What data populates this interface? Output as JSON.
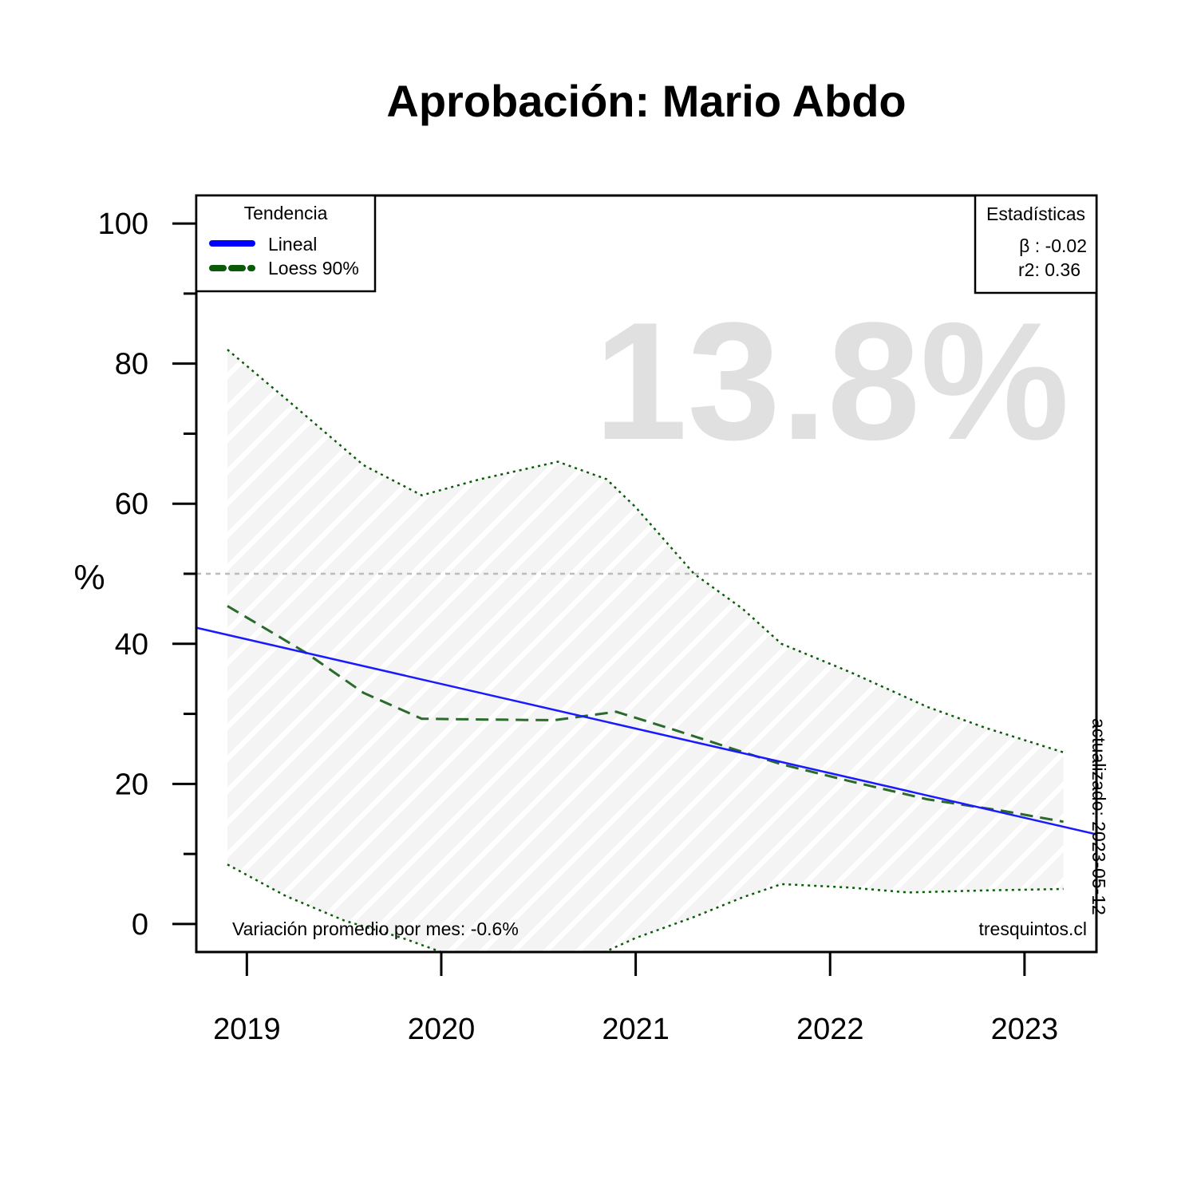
{
  "chart_data": {
    "type": "line",
    "title": "Aprobación: Mario Abdo",
    "ylabel": "%",
    "xlabel": "",
    "ylim": [
      -4,
      104
    ],
    "xlim": [
      2018.74,
      2023.37
    ],
    "y_ticks": [
      0,
      20,
      40,
      60,
      80,
      100
    ],
    "y_minor_ticks": [
      10,
      30,
      50,
      70,
      90
    ],
    "x_ticks": [
      {
        "value": 2019,
        "label": "2019"
      },
      {
        "value": 2020,
        "label": "2020"
      },
      {
        "value": 2021,
        "label": "2021"
      },
      {
        "value": 2022,
        "label": "2022"
      },
      {
        "value": 2023,
        "label": "2023"
      }
    ],
    "reference_line": 50,
    "series": [
      {
        "name": "Lineal",
        "color": "#0000ff",
        "style": "solid",
        "x": [
          2018.74,
          2023.37
        ],
        "y": [
          42.3,
          12.8
        ]
      },
      {
        "name": "Loess 90%",
        "color": "#0a5a0a",
        "style": "dashed",
        "x": [
          2018.9,
          2019.3,
          2019.6,
          2019.9,
          2020.2,
          2020.58,
          2020.9,
          2021.2,
          2021.5,
          2021.75,
          2022.1,
          2022.5,
          2022.9,
          2023.2
        ],
        "y": [
          45.4,
          38.8,
          33.0,
          29.3,
          29.2,
          29.1,
          30.3,
          27.7,
          25.0,
          22.8,
          20.4,
          17.8,
          16.1,
          14.6
        ]
      }
    ],
    "band": {
      "upper": {
        "x": [
          2018.9,
          2019.2,
          2019.6,
          2019.9,
          2020.2,
          2020.6,
          2020.85,
          2021.0,
          2021.3,
          2021.55,
          2021.75,
          2022.1,
          2022.5,
          2022.8,
          2023.2
        ],
        "y": [
          82.0,
          75.0,
          65.5,
          61.2,
          63.5,
          66.0,
          63.5,
          59.5,
          50.0,
          45.0,
          40.0,
          36.0,
          31.0,
          28.0,
          24.5
        ]
      },
      "lower": {
        "x": [
          2018.9,
          2019.2,
          2019.5,
          2019.8,
          2020.0,
          2020.2,
          2020.5,
          2020.8,
          2021.0,
          2021.3,
          2021.55,
          2021.75,
          2022.1,
          2022.4,
          2022.8,
          2023.2
        ],
        "y": [
          8.5,
          4.0,
          0.5,
          -2.0,
          -4.0,
          -5.0,
          -5.5,
          -4.5,
          -2.0,
          1.0,
          3.8,
          5.7,
          5.2,
          4.5,
          4.8,
          5.0
        ]
      },
      "color": "#0a5a0a",
      "style": "dotted"
    },
    "legend": {
      "title": "Tendencia",
      "position": "top-left",
      "entries": [
        {
          "label": "Lineal",
          "color": "#0000ff",
          "style": "solid"
        },
        {
          "label": "Loess 90%",
          "color": "#0a5a0a",
          "style": "dashed"
        }
      ]
    },
    "stats": {
      "title": "Estadísticas",
      "position": "top-right",
      "beta": "β : -0.02",
      "r2": "r2: 0.36"
    },
    "highlight": "13.8%",
    "footer_left": "Variación promedio por mes: -0.6%",
    "footer_right": "tresquintos.cl",
    "updated": "actualizado: 2023-05-12"
  }
}
